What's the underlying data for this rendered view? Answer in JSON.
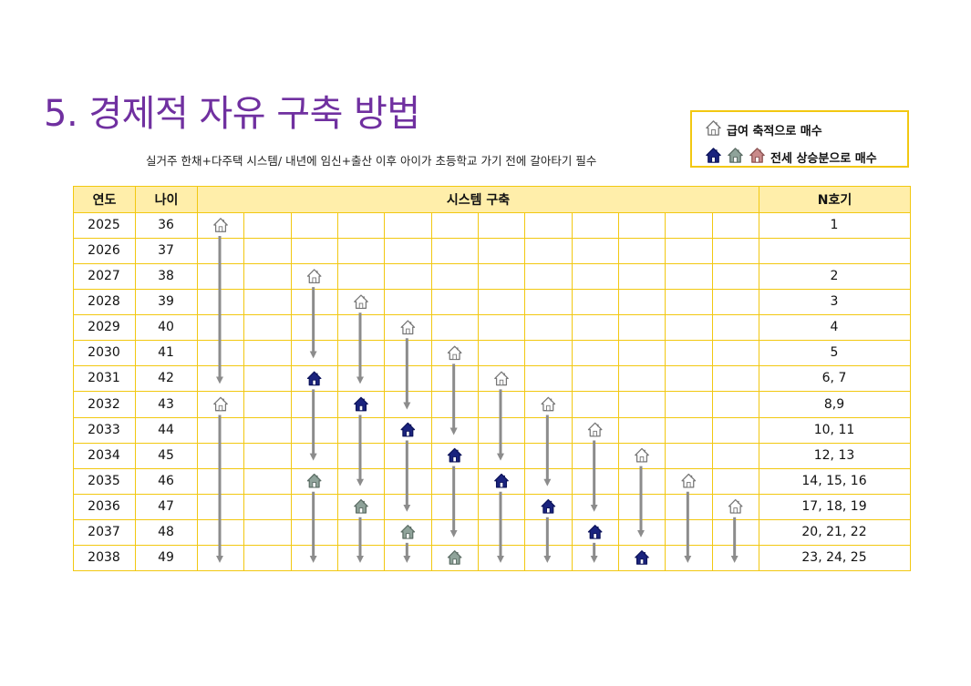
{
  "page": {
    "title": "5. 경제적 자유 구축 방법",
    "subtitle": "실거주 한채+다주택 시스템/ 내년에 임신+출산 이후 아이가 초등학교 가기 전에 갈아타기 필수"
  },
  "legend": {
    "salary_label": "급여 축적으로 매수",
    "jeonse_label": "전세 상승분으로 매수"
  },
  "colors": {
    "accent": "#7030a0",
    "border": "#f2c811",
    "header_bg": "#ffeeaa",
    "house_white": "#ffffff",
    "house_navy": "#1a237e",
    "house_gray": "#8fa39a",
    "house_pink": "#c98a8a",
    "arrow": "#8c8c8c"
  },
  "table": {
    "headers": {
      "year": "연도",
      "age": "나이",
      "system": "시스템 구축",
      "nth": "N호기"
    },
    "rows": [
      {
        "year": "2025",
        "age": "36",
        "nth": "1"
      },
      {
        "year": "2026",
        "age": "37",
        "nth": ""
      },
      {
        "year": "2027",
        "age": "38",
        "nth": "2"
      },
      {
        "year": "2028",
        "age": "39",
        "nth": "3"
      },
      {
        "year": "2029",
        "age": "40",
        "nth": "4"
      },
      {
        "year": "2030",
        "age": "41",
        "nth": "5"
      },
      {
        "year": "2031",
        "age": "42",
        "nth": "6, 7"
      },
      {
        "year": "2032",
        "age": "43",
        "nth": "8,9"
      },
      {
        "year": "2033",
        "age": "44",
        "nth": "10, 11"
      },
      {
        "year": "2034",
        "age": "45",
        "nth": "12, 13"
      },
      {
        "year": "2035",
        "age": "46",
        "nth": "14, 15, 16"
      },
      {
        "year": "2036",
        "age": "47",
        "nth": "17, 18, 19"
      },
      {
        "year": "2037",
        "age": "48",
        "nth": "20, 21, 22"
      },
      {
        "year": "2038",
        "age": "49",
        "nth": "23, 24, 25"
      }
    ],
    "houses": [
      {
        "col": 0,
        "row": 0,
        "type": "white"
      },
      {
        "col": 0,
        "row": 7,
        "type": "white"
      },
      {
        "col": 2,
        "row": 2,
        "type": "white"
      },
      {
        "col": 2,
        "row": 6,
        "type": "navy"
      },
      {
        "col": 2,
        "row": 10,
        "type": "gray"
      },
      {
        "col": 3,
        "row": 3,
        "type": "white"
      },
      {
        "col": 3,
        "row": 7,
        "type": "navy"
      },
      {
        "col": 3,
        "row": 11,
        "type": "gray"
      },
      {
        "col": 4,
        "row": 4,
        "type": "white"
      },
      {
        "col": 4,
        "row": 8,
        "type": "navy"
      },
      {
        "col": 4,
        "row": 12,
        "type": "gray"
      },
      {
        "col": 5,
        "row": 5,
        "type": "white"
      },
      {
        "col": 5,
        "row": 9,
        "type": "navy"
      },
      {
        "col": 5,
        "row": 13,
        "type": "gray"
      },
      {
        "col": 6,
        "row": 6,
        "type": "white"
      },
      {
        "col": 6,
        "row": 10,
        "type": "navy"
      },
      {
        "col": 7,
        "row": 7,
        "type": "white"
      },
      {
        "col": 7,
        "row": 11,
        "type": "navy"
      },
      {
        "col": 8,
        "row": 8,
        "type": "white"
      },
      {
        "col": 8,
        "row": 12,
        "type": "navy"
      },
      {
        "col": 9,
        "row": 9,
        "type": "white"
      },
      {
        "col": 9,
        "row": 13,
        "type": "navy"
      },
      {
        "col": 10,
        "row": 10,
        "type": "white"
      },
      {
        "col": 11,
        "row": 11,
        "type": "white"
      }
    ],
    "arrows": [
      {
        "col": 0,
        "from_row": 0,
        "to_row": 6
      },
      {
        "col": 0,
        "from_row": 7,
        "to_row": 13
      },
      {
        "col": 2,
        "from_row": 2,
        "to_row": 5
      },
      {
        "col": 2,
        "from_row": 6,
        "to_row": 9
      },
      {
        "col": 2,
        "from_row": 10,
        "to_row": 13
      },
      {
        "col": 3,
        "from_row": 3,
        "to_row": 6
      },
      {
        "col": 3,
        "from_row": 7,
        "to_row": 10
      },
      {
        "col": 3,
        "from_row": 11,
        "to_row": 13
      },
      {
        "col": 4,
        "from_row": 4,
        "to_row": 7
      },
      {
        "col": 4,
        "from_row": 8,
        "to_row": 11
      },
      {
        "col": 4,
        "from_row": 12,
        "to_row": 13
      },
      {
        "col": 5,
        "from_row": 5,
        "to_row": 8
      },
      {
        "col": 5,
        "from_row": 9,
        "to_row": 12
      },
      {
        "col": 6,
        "from_row": 6,
        "to_row": 9
      },
      {
        "col": 6,
        "from_row": 10,
        "to_row": 13
      },
      {
        "col": 7,
        "from_row": 7,
        "to_row": 10
      },
      {
        "col": 7,
        "from_row": 11,
        "to_row": 13
      },
      {
        "col": 8,
        "from_row": 8,
        "to_row": 11
      },
      {
        "col": 8,
        "from_row": 12,
        "to_row": 13
      },
      {
        "col": 9,
        "from_row": 9,
        "to_row": 12
      },
      {
        "col": 10,
        "from_row": 10,
        "to_row": 13
      },
      {
        "col": 11,
        "from_row": 11,
        "to_row": 13
      }
    ]
  }
}
